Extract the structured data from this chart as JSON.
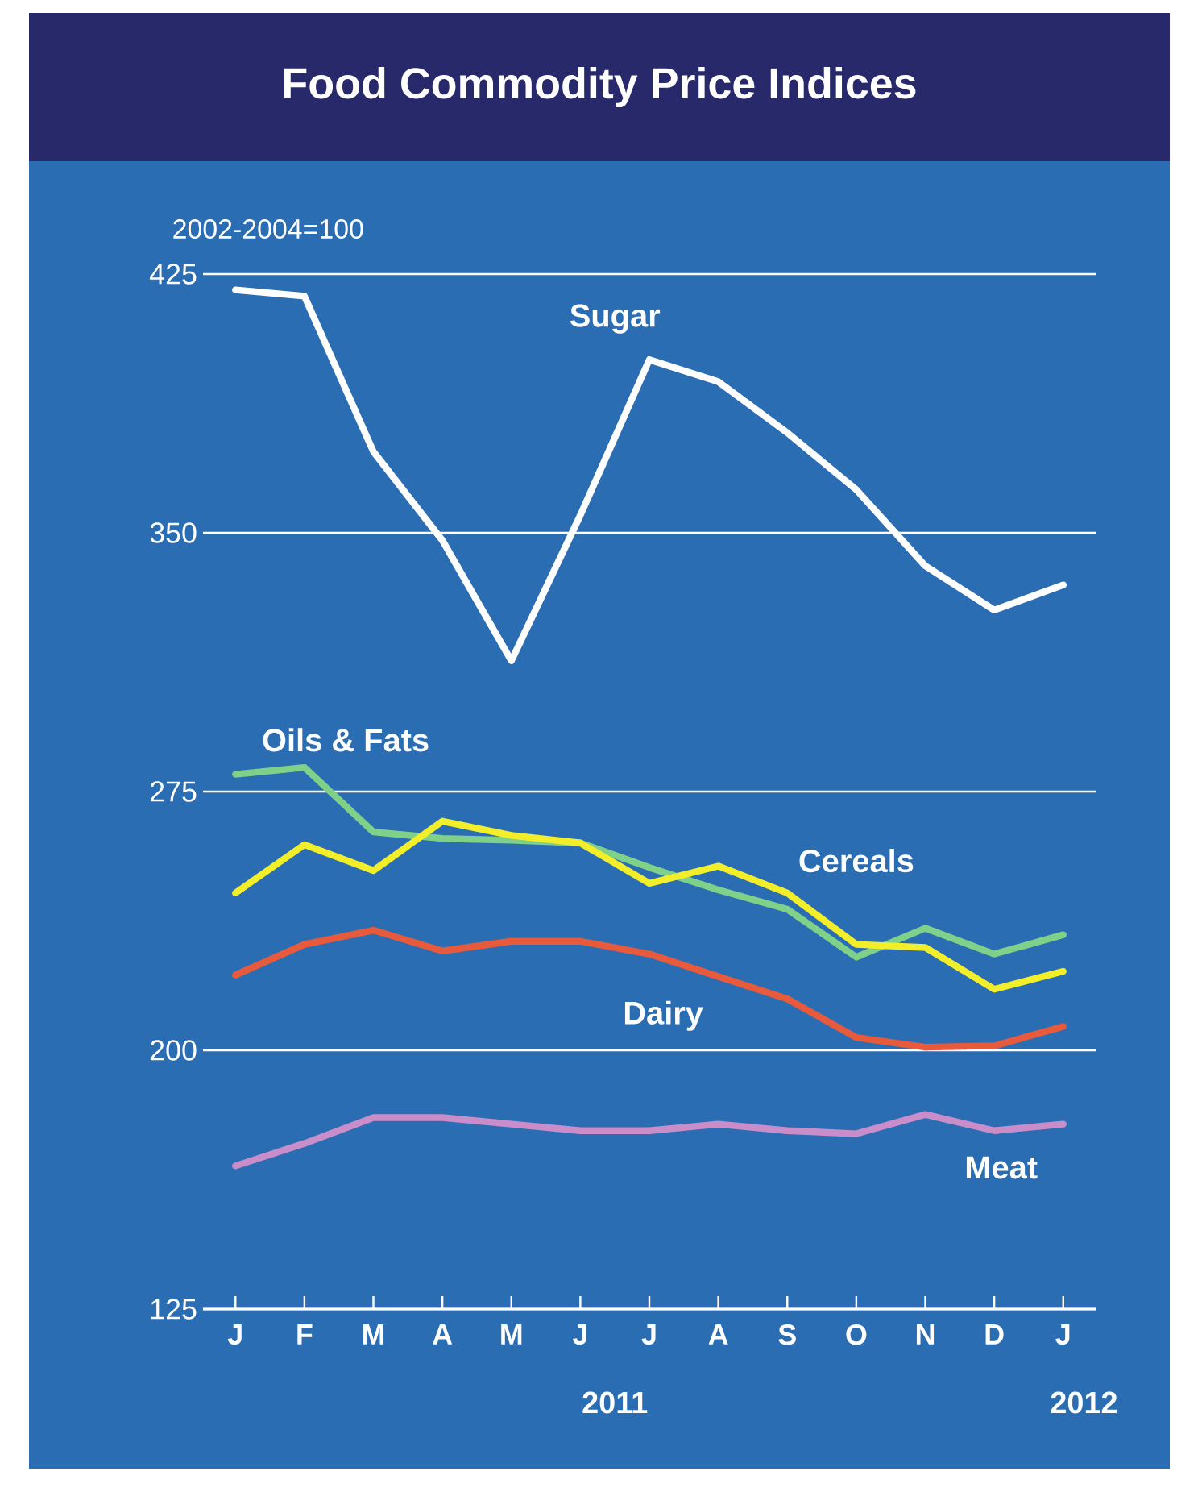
{
  "chart_data": {
    "type": "line",
    "title": "Food Commodity Price Indices",
    "categories": [
      "J",
      "F",
      "M",
      "A",
      "M",
      "J",
      "J",
      "A",
      "S",
      "O",
      "N",
      "D",
      "J"
    ],
    "series": [
      {
        "name": "Sugar",
        "color": "#ffffff",
        "values": [
          420.4,
          418.6,
          373.5,
          347.8,
          312.9,
          355.1,
          400.2,
          393.8,
          379,
          362.5,
          340.4,
          327.6,
          334.9
        ]
      },
      {
        "name": "Oils & Fats",
        "color": "#7fd18a",
        "values": [
          280,
          282,
          263.3,
          261.4,
          260.9,
          260.1,
          253,
          246.5,
          240.9,
          227,
          235.4,
          227.9,
          233.5
        ]
      },
      {
        "name": "Cereals",
        "color": "#f2ee2a",
        "values": [
          245.6,
          259.6,
          252.1,
          266.4,
          262.3,
          260.1,
          248.4,
          253.4,
          245.6,
          230.7,
          229.8,
          217.7,
          222.9
        ]
      },
      {
        "name": "Dairy",
        "color": "#e85a3c",
        "values": [
          221.8,
          230.7,
          234.8,
          228.8,
          231.6,
          231.6,
          227.9,
          221.4,
          214.9,
          203.7,
          200.9,
          201.3,
          206.9
        ]
      },
      {
        "name": "Meat",
        "color": "#c98ec9",
        "values": [
          166.5,
          173,
          180.5,
          180.5,
          178.6,
          176.7,
          176.7,
          178.6,
          176.7,
          175.8,
          181.4,
          176.7,
          178.6
        ]
      }
    ],
    "ylim": [
      125,
      425
    ],
    "yticks": [
      125,
      200,
      275,
      350,
      425
    ],
    "grid": "y",
    "annotations": [
      "2002-2004=100",
      "2011",
      "2012"
    ]
  }
}
